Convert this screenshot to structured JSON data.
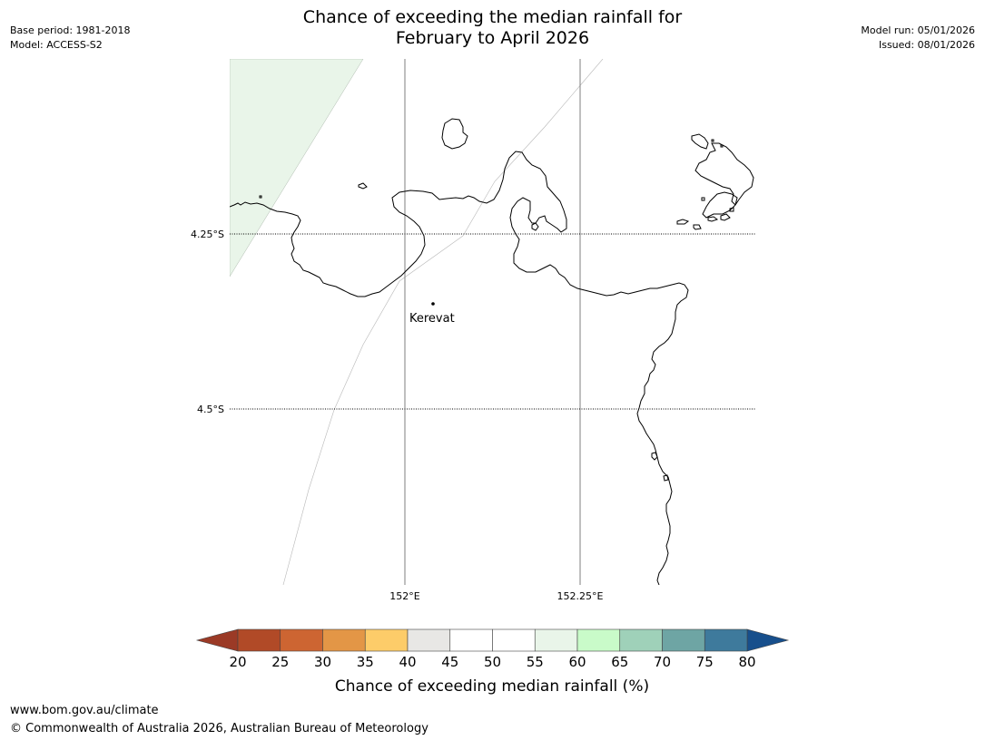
{
  "header": {
    "title_line1": "Chance of exceeding the median rainfall for",
    "title_line2": "February to April 2026",
    "base_period": "Base period: 1981-2018",
    "model": "Model: ACCESS-S2",
    "model_run": "Model run: 05/01/2026",
    "issued": "Issued: 08/01/2026"
  },
  "map": {
    "latitude_labels": [
      "4.25°S",
      "4.5°S"
    ],
    "longitude_labels": [
      "152°E",
      "152.25°E"
    ],
    "places": [
      {
        "name": "Kerevat"
      }
    ],
    "shaded_region_color": "#e9f5e9",
    "coastline_color": "#000000"
  },
  "colorbar": {
    "title": "Chance of exceeding median rainfall (%)",
    "tick_labels": [
      "20",
      "25",
      "30",
      "35",
      "40",
      "45",
      "50",
      "55",
      "60",
      "65",
      "70",
      "75",
      "80"
    ],
    "under_color": "#9b3a26",
    "over_color": "#174f8c",
    "colors": [
      "#b14a27",
      "#cd6532",
      "#e39646",
      "#fdcc69",
      "#e8e7e5",
      "#ffffff",
      "#ffffff",
      "#e9f5e9",
      "#c9fbc9",
      "#9fd1b9",
      "#6ea5a4",
      "#3e7a9c"
    ]
  },
  "footer": {
    "url": "www.bom.gov.au/climate",
    "copyright": "© Commonwealth of Australia 2026, Australian Bureau of Meteorology"
  }
}
